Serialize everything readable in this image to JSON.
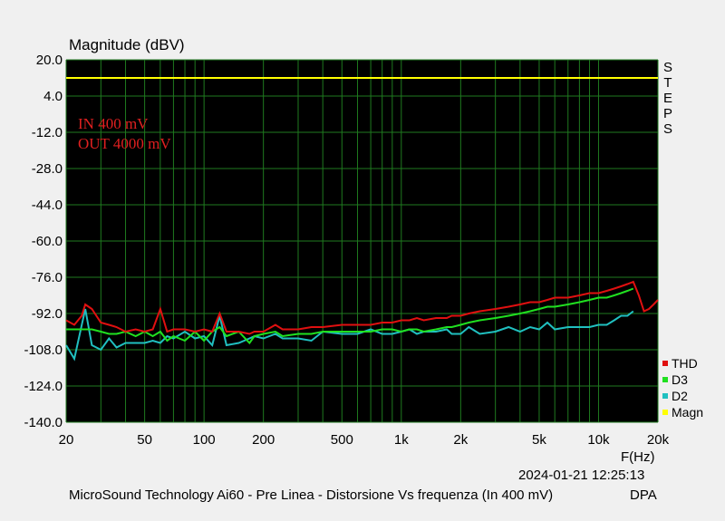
{
  "chart_data": {
    "type": "line",
    "title": "MicroSound Technology Ai60 - Pre Linea - Distorsione Vs frequenza (In 400 mV)",
    "ylabel": "Magnitude (dBV)",
    "xlabel": "F(Hz)",
    "xscale": "log",
    "xlim": [
      20,
      20000
    ],
    "ylim": [
      -140,
      20
    ],
    "yticks": [
      "20.0",
      "4.0",
      "-12.0",
      "-28.0",
      "-44.0",
      "-60.0",
      "-76.0",
      "-92.0",
      "-108.0",
      "-124.0",
      "-140.0"
    ],
    "xtick_values": [
      20,
      50,
      100,
      200,
      500,
      1000,
      2000,
      5000,
      10000,
      20000
    ],
    "xticks": [
      "20",
      "50",
      "100",
      "200",
      "500",
      "1k",
      "2k",
      "5k",
      "10k",
      "20k"
    ],
    "grid": true,
    "legend_position": "bottom-right",
    "annotation": [
      "IN 400 mV",
      "OUT 4000 mV"
    ],
    "steps_label": [
      "S",
      "T",
      "E",
      "P",
      "S"
    ],
    "timestamp": "2024-01-21 12:25:13",
    "brand": "DPA",
    "series": [
      {
        "name": "Magn",
        "color": "#ffff00",
        "x": [
          20,
          20000
        ],
        "y": [
          12,
          12
        ]
      },
      {
        "name": "D2",
        "color": "#20c0c0",
        "x": [
          20,
          22,
          25,
          27,
          30,
          33,
          36,
          40,
          45,
          50,
          55,
          60,
          65,
          70,
          80,
          90,
          100,
          110,
          120,
          130,
          150,
          170,
          180,
          200,
          230,
          250,
          300,
          350,
          400,
          500,
          600,
          700,
          800,
          900,
          1000,
          1100,
          1200,
          1300,
          1500,
          1700,
          1800,
          2000,
          2200,
          2500,
          3000,
          3500,
          4000,
          4500,
          5000,
          5500,
          6000,
          7000,
          8000,
          9000,
          10000,
          11000,
          12000,
          13000,
          14000,
          15000
        ],
        "y": [
          -106,
          -112,
          -90,
          -106,
          -108,
          -103,
          -107,
          -105,
          -105,
          -105,
          -104,
          -105,
          -102,
          -103,
          -100,
          -103,
          -102,
          -106,
          -93,
          -106,
          -105,
          -103,
          -102,
          -103,
          -101,
          -103,
          -103,
          -104,
          -100,
          -101,
          -101,
          -99,
          -101,
          -101,
          -100,
          -99,
          -101,
          -100,
          -100,
          -99,
          -101,
          -101,
          -98,
          -101,
          -100,
          -98,
          -100,
          -98,
          -99,
          -96,
          -99,
          -98,
          -98,
          -98,
          -97,
          -97,
          -95,
          -93,
          -93,
          -91
        ]
      },
      {
        "name": "D3",
        "color": "#20e020",
        "x": [
          20,
          22,
          25,
          27,
          30,
          33,
          36,
          40,
          45,
          50,
          55,
          60,
          65,
          70,
          80,
          90,
          100,
          110,
          120,
          130,
          150,
          170,
          180,
          200,
          230,
          250,
          300,
          350,
          400,
          500,
          600,
          700,
          800,
          900,
          1000,
          1100,
          1200,
          1300,
          1500,
          1700,
          1800,
          2000,
          2200,
          2500,
          3000,
          3500,
          4000,
          4500,
          5000,
          5500,
          6000,
          7000,
          8000,
          9000,
          10000,
          11000,
          12000,
          13000,
          14000,
          15000
        ],
        "y": [
          -99,
          -99,
          -99,
          -99,
          -100,
          -101,
          -101,
          -100,
          -102,
          -100,
          -102,
          -100,
          -104,
          -102,
          -104,
          -100,
          -104,
          -100,
          -98,
          -102,
          -100,
          -105,
          -102,
          -101,
          -100,
          -102,
          -101,
          -101,
          -100,
          -100,
          -100,
          -100,
          -99,
          -99,
          -100,
          -99,
          -99,
          -100,
          -99,
          -98,
          -98,
          -97,
          -96,
          -95,
          -94,
          -93,
          -92,
          -91,
          -90,
          -89,
          -89,
          -88,
          -87,
          -86,
          -85,
          -85,
          -84,
          -83,
          -82,
          -81
        ]
      },
      {
        "name": "THD",
        "color": "#e01010",
        "x": [
          20,
          22,
          24,
          25,
          27,
          30,
          33,
          36,
          40,
          45,
          50,
          55,
          60,
          65,
          70,
          80,
          90,
          100,
          110,
          120,
          130,
          150,
          170,
          180,
          200,
          230,
          250,
          300,
          350,
          400,
          500,
          600,
          700,
          800,
          900,
          1000,
          1100,
          1200,
          1300,
          1500,
          1700,
          1800,
          2000,
          2200,
          2500,
          3000,
          3500,
          4000,
          4500,
          5000,
          5500,
          6000,
          7000,
          8000,
          9000,
          10000,
          11000,
          12000,
          13000,
          14000,
          15000,
          16000,
          17000,
          18000,
          19000,
          20000
        ],
        "y": [
          -95,
          -97,
          -93,
          -88,
          -90,
          -96,
          -97,
          -98,
          -100,
          -99,
          -100,
          -99,
          -90,
          -100,
          -99,
          -99,
          -100,
          -99,
          -100,
          -92,
          -100,
          -100,
          -101,
          -100,
          -100,
          -97,
          -99,
          -99,
          -98,
          -98,
          -97,
          -97,
          -97,
          -96,
          -96,
          -95,
          -95,
          -94,
          -95,
          -94,
          -94,
          -93,
          -93,
          -92,
          -91,
          -90,
          -89,
          -88,
          -87,
          -87,
          -86,
          -85,
          -85,
          -84,
          -83,
          -83,
          -82,
          -81,
          -80,
          -79,
          -78,
          -84,
          -91,
          -90,
          -88,
          -86
        ]
      }
    ]
  }
}
